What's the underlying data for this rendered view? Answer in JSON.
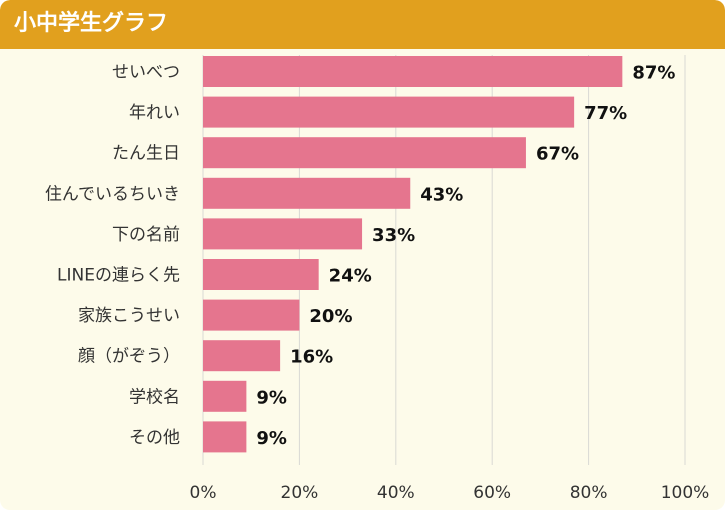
{
  "chart_data": {
    "type": "bar",
    "orientation": "horizontal",
    "title": "小中学生グラフ",
    "categories": [
      "せいべつ",
      "年れい",
      "たん生日",
      "住んでいるちいき",
      "下の名前",
      "LINEの連らく先",
      "家族こうせい",
      "顔（がぞう）",
      "学校名",
      "その他"
    ],
    "values": [
      87,
      77,
      67,
      43,
      33,
      24,
      20,
      16,
      9,
      9
    ],
    "value_labels": [
      "87%",
      "77%",
      "67%",
      "43%",
      "33%",
      "24%",
      "20%",
      "16%",
      "9%",
      "9%"
    ],
    "xlim": [
      0,
      100
    ],
    "x_ticks": [
      0,
      20,
      40,
      60,
      80,
      100
    ],
    "x_tick_labels": [
      "0%",
      "20%",
      "40%",
      "60%",
      "80%",
      "100%"
    ],
    "grid": true,
    "colors": {
      "bar": "#e5758e",
      "header": "#e1a01e",
      "background": "#fdfbea",
      "grid": "#d9d9d4"
    }
  }
}
